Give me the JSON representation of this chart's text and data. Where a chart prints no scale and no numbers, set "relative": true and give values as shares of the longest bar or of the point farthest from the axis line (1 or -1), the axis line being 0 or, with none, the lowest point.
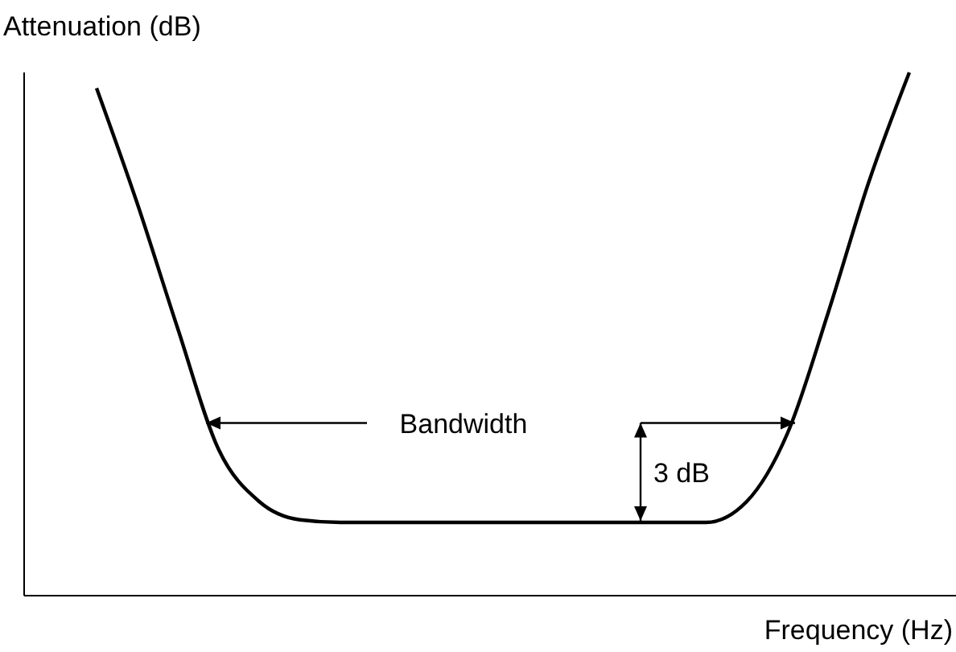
{
  "chart_data": {
    "type": "line",
    "relative": true,
    "xlabel": "Frequency (Hz)",
    "ylabel": "Attenuation (dB)",
    "annotations": [
      "Bandwidth",
      "3 dB"
    ],
    "color": "#000000",
    "line_style": "solid",
    "categories": [
      null,
      null,
      null,
      null,
      null,
      null,
      null,
      null,
      null,
      null,
      null,
      null,
      null,
      null,
      null,
      null,
      null,
      null,
      null,
      null,
      null
    ],
    "values": [
      0.97,
      0.75,
      0.51,
      0.28,
      0.18,
      0.145,
      0.14,
      0.14,
      0.14,
      0.14,
      0.14,
      0.14,
      0.14,
      0.14,
      0.14,
      0.14,
      0.18,
      0.31,
      0.54,
      0.79,
      1
    ]
  }
}
